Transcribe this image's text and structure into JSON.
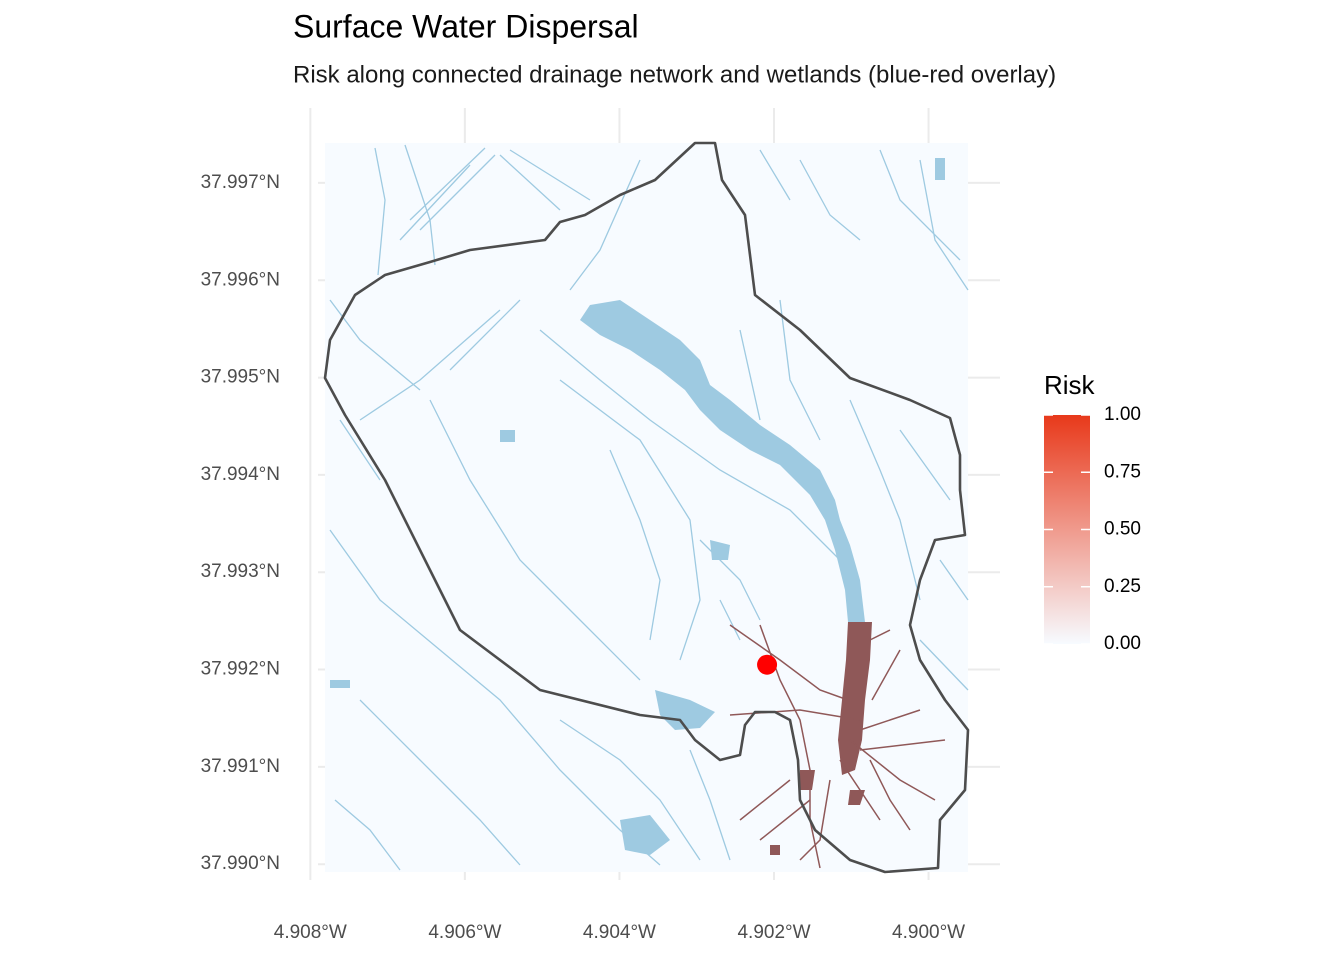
{
  "chart_data": {
    "type": "map",
    "title": "Surface Water Dispersal",
    "subtitle": "Risk along connected drainage network and wetlands (blue-red overlay)",
    "xlim": [
      -4.90781,
      -4.89949
    ],
    "ylim": [
      37.98992,
      37.99741
    ],
    "xticks": [
      {
        "value": -4.908,
        "label": "4.908°W"
      },
      {
        "value": -4.906,
        "label": "4.906°W"
      },
      {
        "value": -4.904,
        "label": "4.904°W"
      },
      {
        "value": -4.902,
        "label": "4.902°W"
      },
      {
        "value": -4.9,
        "label": "4.900°W"
      }
    ],
    "yticks": [
      {
        "value": 37.99,
        "label": "37.990°N"
      },
      {
        "value": 37.991,
        "label": "37.991°N"
      },
      {
        "value": 37.992,
        "label": "37.992°N"
      },
      {
        "value": 37.993,
        "label": "37.993°N"
      },
      {
        "value": 37.994,
        "label": "37.994°N"
      },
      {
        "value": 37.995,
        "label": "37.995°N"
      },
      {
        "value": 37.996,
        "label": "37.996°N"
      },
      {
        "value": 37.997,
        "label": "37.997°N"
      }
    ],
    "grid": true,
    "point": {
      "x": -4.90209,
      "y": 37.99205,
      "color": "#ff0000"
    },
    "legend": {
      "title": "Risk",
      "position": "right",
      "low_color": "#f7fbff",
      "high_color": "#e8391a",
      "range": [
        0,
        1
      ],
      "ticks": [
        {
          "value": 0,
          "label": "0.00"
        },
        {
          "value": 0.25,
          "label": "0.25"
        },
        {
          "value": 0.5,
          "label": "0.50"
        },
        {
          "value": 0.75,
          "label": "0.75"
        },
        {
          "value": 1,
          "label": "1.00"
        }
      ]
    }
  }
}
